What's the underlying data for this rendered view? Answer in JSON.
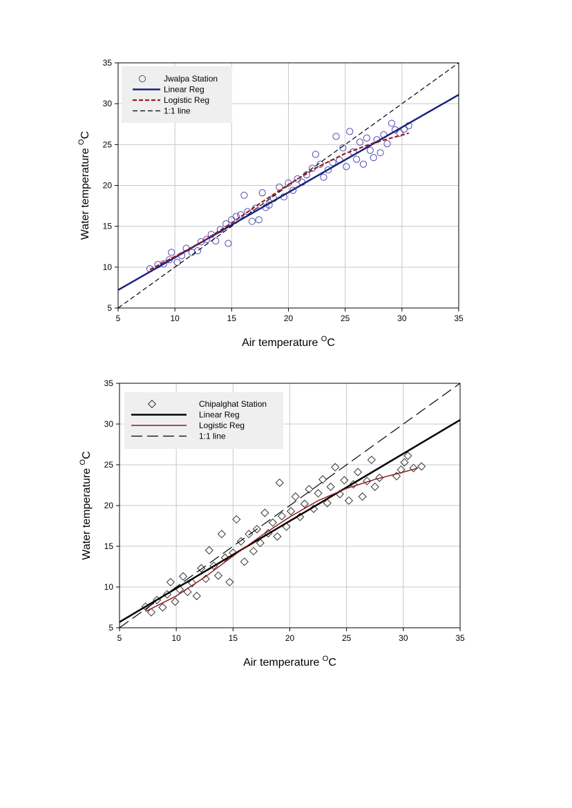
{
  "chart_data": [
    {
      "type": "scatter",
      "xlabel": "Air temperature",
      "ylabel": "Water temperature",
      "unit": "C",
      "unit_superscript": "O",
      "xlim": [
        5,
        35
      ],
      "ylim": [
        5,
        35
      ],
      "xticks": [
        "5",
        "10",
        "15",
        "20",
        "25",
        "30",
        "35"
      ],
      "yticks": [
        "5",
        "10",
        "15",
        "20",
        "25",
        "30",
        "35"
      ],
      "grid": true,
      "legend_position": "top-left",
      "colors": {
        "marker": "#4a4ab0",
        "linear": "#1a237e",
        "logistic": "#a01a1a",
        "identity": "#000000",
        "legend_bg": "#efefef"
      },
      "marker": "circle",
      "series": [
        {
          "name": "Jwalpa Station",
          "kind": "points",
          "points": [
            [
              7.8,
              9.8
            ],
            [
              8.5,
              10.3
            ],
            [
              9.0,
              10.4
            ],
            [
              9.5,
              10.9
            ],
            [
              9.7,
              11.8
            ],
            [
              10.2,
              10.6
            ],
            [
              10.6,
              11.4
            ],
            [
              11.0,
              12.3
            ],
            [
              11.5,
              11.8
            ],
            [
              12.0,
              12.0
            ],
            [
              12.3,
              13.1
            ],
            [
              12.8,
              13.4
            ],
            [
              13.2,
              14.0
            ],
            [
              13.6,
              13.2
            ],
            [
              14.0,
              14.6
            ],
            [
              14.5,
              15.3
            ],
            [
              14.7,
              12.9
            ],
            [
              15.0,
              15.8
            ],
            [
              15.4,
              16.2
            ],
            [
              15.8,
              16.4
            ],
            [
              16.1,
              18.8
            ],
            [
              16.4,
              16.8
            ],
            [
              16.8,
              15.6
            ],
            [
              17.1,
              17.2
            ],
            [
              17.4,
              15.8
            ],
            [
              17.7,
              19.1
            ],
            [
              18.0,
              17.3
            ],
            [
              18.3,
              17.6
            ],
            [
              18.7,
              18.4
            ],
            [
              19.2,
              19.8
            ],
            [
              19.6,
              18.6
            ],
            [
              20.0,
              20.3
            ],
            [
              20.4,
              19.4
            ],
            [
              20.8,
              20.8
            ],
            [
              21.2,
              20.4
            ],
            [
              21.6,
              21.3
            ],
            [
              22.1,
              22.1
            ],
            [
              22.4,
              23.8
            ],
            [
              22.8,
              22.6
            ],
            [
              23.1,
              21.0
            ],
            [
              23.5,
              21.9
            ],
            [
              23.9,
              22.8
            ],
            [
              24.2,
              26.0
            ],
            [
              24.5,
              23.1
            ],
            [
              24.8,
              24.6
            ],
            [
              25.1,
              22.3
            ],
            [
              25.4,
              26.6
            ],
            [
              25.7,
              24.1
            ],
            [
              26.0,
              23.2
            ],
            [
              26.3,
              25.3
            ],
            [
              26.6,
              22.6
            ],
            [
              26.9,
              25.8
            ],
            [
              27.2,
              24.3
            ],
            [
              27.5,
              23.4
            ],
            [
              27.8,
              25.6
            ],
            [
              28.1,
              24.0
            ],
            [
              28.4,
              26.2
            ],
            [
              28.7,
              25.1
            ],
            [
              29.1,
              27.6
            ],
            [
              29.4,
              26.8
            ],
            [
              29.8,
              26.4
            ],
            [
              30.2,
              26.9
            ],
            [
              30.6,
              27.3
            ]
          ]
        },
        {
          "name": "Linear Reg",
          "kind": "line",
          "style": "solid",
          "x": [
            5,
            35
          ],
          "y": [
            7.2,
            31.1
          ]
        },
        {
          "name": "Logistic Reg",
          "kind": "line",
          "style": "dashed",
          "x": [
            7.8,
            10,
            12.5,
            15,
            17.5,
            20,
            22.5,
            25,
            27.5,
            30.6
          ],
          "y": [
            9.7,
            11.3,
            13.2,
            15.4,
            17.8,
            20.1,
            22.2,
            23.9,
            25.2,
            26.4
          ]
        },
        {
          "name": "1:1 line",
          "kind": "line",
          "style": "dashed",
          "x": [
            5,
            35
          ],
          "y": [
            5,
            35
          ]
        }
      ]
    },
    {
      "type": "scatter",
      "xlabel": "Air temperature",
      "ylabel": "Water temperature",
      "unit": "C",
      "unit_superscript": "O",
      "xlim": [
        5,
        35
      ],
      "ylim": [
        5,
        35
      ],
      "xticks": [
        "5",
        "10",
        "15",
        "20",
        "25",
        "30",
        "35"
      ],
      "yticks": [
        "5",
        "10",
        "15",
        "20",
        "25",
        "30",
        "35"
      ],
      "grid": true,
      "legend_position": "top-left",
      "colors": {
        "marker": "#333333",
        "linear": "#000000",
        "logistic": "#8b1a1a",
        "identity": "#000000",
        "legend_bg": "#efefef"
      },
      "marker": "diamond",
      "series": [
        {
          "name": "Chipalghat Station",
          "kind": "points",
          "points": [
            [
              7.3,
              7.6
            ],
            [
              7.8,
              6.9
            ],
            [
              8.3,
              8.4
            ],
            [
              8.8,
              7.5
            ],
            [
              9.2,
              9.1
            ],
            [
              9.5,
              10.6
            ],
            [
              9.9,
              8.2
            ],
            [
              10.3,
              9.7
            ],
            [
              10.6,
              11.3
            ],
            [
              11.0,
              9.4
            ],
            [
              11.4,
              10.5
            ],
            [
              11.8,
              8.9
            ],
            [
              12.2,
              12.3
            ],
            [
              12.6,
              11.0
            ],
            [
              12.9,
              14.5
            ],
            [
              13.3,
              12.6
            ],
            [
              13.7,
              11.4
            ],
            [
              14.0,
              16.5
            ],
            [
              14.3,
              13.6
            ],
            [
              14.7,
              10.6
            ],
            [
              15.0,
              14.2
            ],
            [
              15.3,
              18.3
            ],
            [
              15.7,
              15.6
            ],
            [
              16.0,
              13.1
            ],
            [
              16.4,
              16.5
            ],
            [
              16.8,
              14.4
            ],
            [
              17.1,
              17.1
            ],
            [
              17.4,
              15.4
            ],
            [
              17.8,
              19.1
            ],
            [
              18.1,
              16.6
            ],
            [
              18.5,
              17.9
            ],
            [
              18.9,
              16.2
            ],
            [
              19.1,
              22.8
            ],
            [
              19.3,
              18.7
            ],
            [
              19.7,
              17.4
            ],
            [
              20.1,
              19.3
            ],
            [
              20.5,
              21.1
            ],
            [
              20.9,
              18.6
            ],
            [
              21.3,
              20.2
            ],
            [
              21.7,
              22.0
            ],
            [
              22.1,
              19.6
            ],
            [
              22.5,
              21.5
            ],
            [
              22.9,
              23.2
            ],
            [
              23.3,
              20.3
            ],
            [
              23.6,
              22.3
            ],
            [
              24.0,
              24.7
            ],
            [
              24.4,
              21.4
            ],
            [
              24.8,
              23.1
            ],
            [
              25.2,
              20.6
            ],
            [
              25.6,
              22.6
            ],
            [
              26.0,
              24.1
            ],
            [
              26.4,
              21.1
            ],
            [
              26.8,
              23.0
            ],
            [
              27.2,
              25.6
            ],
            [
              27.5,
              22.3
            ],
            [
              27.9,
              23.4
            ],
            [
              29.4,
              23.6
            ],
            [
              29.8,
              24.4
            ],
            [
              30.1,
              25.3
            ],
            [
              30.4,
              26.1
            ],
            [
              30.9,
              24.6
            ],
            [
              31.6,
              24.8
            ]
          ]
        },
        {
          "name": "Linear Reg",
          "kind": "line",
          "style": "solid",
          "x": [
            5,
            35
          ],
          "y": [
            5.7,
            30.5
          ]
        },
        {
          "name": "Logistic Reg",
          "kind": "line",
          "style": "solid",
          "x": [
            7.3,
            10,
            12.5,
            15,
            17.5,
            20,
            22.5,
            25,
            27.5,
            30,
            31.3
          ],
          "y": [
            7.0,
            8.9,
            11.2,
            13.8,
            16.3,
            18.6,
            20.6,
            22.1,
            23.2,
            24.1,
            24.6
          ]
        },
        {
          "name": "1:1 line",
          "kind": "line",
          "style": "long-dash",
          "x": [
            5,
            35
          ],
          "y": [
            5,
            35
          ]
        }
      ]
    }
  ]
}
